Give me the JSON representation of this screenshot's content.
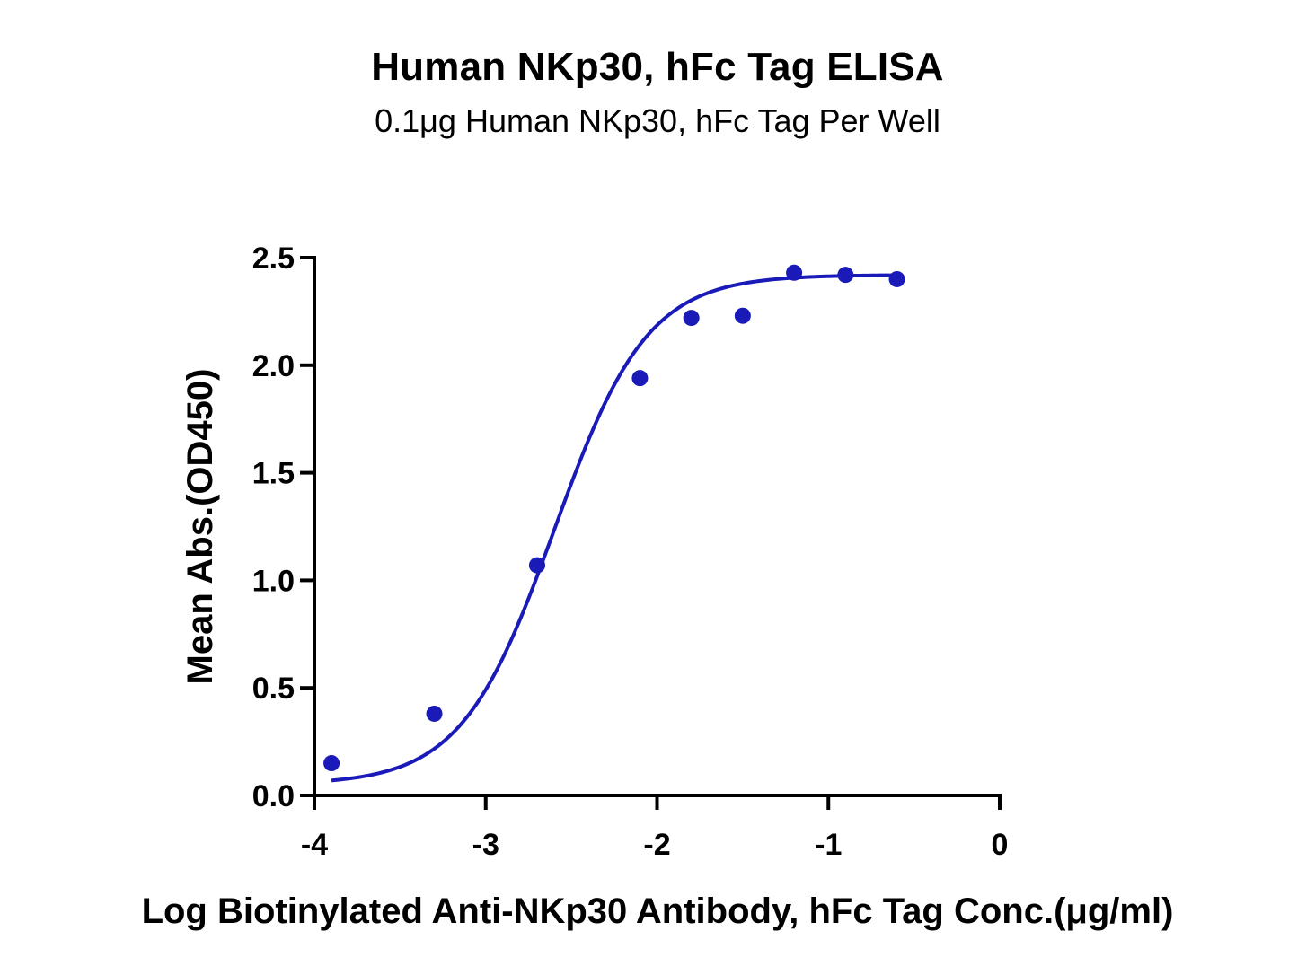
{
  "chart_data": {
    "type": "scatter",
    "title": "Human NKp30, hFc Tag ELISA",
    "subtitle": "0.1μg Human NKp30, hFc Tag Per Well",
    "xlabel": "Log Biotinylated Anti-NKp30 Antibody, hFc Tag Conc.(μg/ml)",
    "ylabel": "Mean Abs.(OD450)",
    "xlim": [
      -4,
      0
    ],
    "ylim": [
      0,
      2.5
    ],
    "x_ticks": [
      "-4",
      "-3",
      "-2",
      "-1",
      "0"
    ],
    "y_ticks": [
      "0.0",
      "0.5",
      "1.0",
      "1.5",
      "2.0",
      "2.5"
    ],
    "grid": false,
    "legend": "none",
    "series": [
      {
        "x": [
          -3.9,
          -3.3,
          -2.7,
          -2.1,
          -1.8,
          -1.5,
          -1.2,
          -0.9,
          -0.6
        ],
        "y": [
          0.15,
          0.38,
          1.07,
          1.94,
          2.22,
          2.23,
          2.43,
          2.42,
          2.4
        ],
        "fit": "sigmoidal",
        "color": "#1a1ab8"
      }
    ]
  }
}
